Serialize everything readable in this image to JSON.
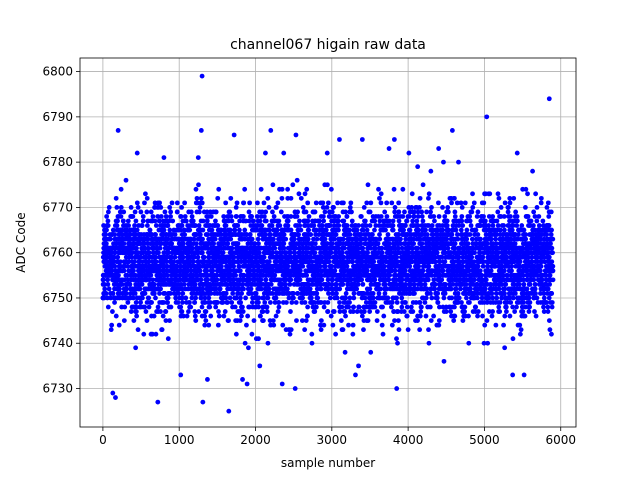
{
  "chart_data": {
    "type": "scatter",
    "title": "channel067 higain raw data",
    "xlabel": "sample number",
    "ylabel": "ADC Code",
    "xlim": [
      -300,
      6200
    ],
    "ylim": [
      6721.5,
      6803
    ],
    "xticks": [
      0,
      1000,
      2000,
      3000,
      4000,
      5000,
      6000
    ],
    "yticks": [
      6730,
      6740,
      6750,
      6760,
      6770,
      6780,
      6790,
      6800
    ],
    "grid": true,
    "marker_color": "#0000ff",
    "n_samples": 5900,
    "baseline_value": 6758,
    "baseline_spread": 6,
    "series": [
      {
        "values_outliers": [
          [
            1300,
            6799
          ],
          [
            5850,
            6794
          ],
          [
            5030,
            6790
          ],
          [
            200,
            6787
          ],
          [
            1290,
            6787
          ],
          [
            2200,
            6787
          ],
          [
            4580,
            6787
          ],
          [
            1720,
            6786
          ],
          [
            2530,
            6786
          ],
          [
            3100,
            6785
          ],
          [
            3400,
            6785
          ],
          [
            3820,
            6785
          ],
          [
            3750,
            6783
          ],
          [
            4400,
            6783
          ],
          [
            450,
            6782
          ],
          [
            2130,
            6782
          ],
          [
            2370,
            6782
          ],
          [
            2940,
            6782
          ],
          [
            4010,
            6782
          ],
          [
            5430,
            6782
          ],
          [
            1250,
            6781
          ],
          [
            800,
            6781
          ],
          [
            4660,
            6780
          ],
          [
            130,
            6729
          ],
          [
            165,
            6728
          ],
          [
            1370,
            6732
          ],
          [
            1830,
            6732
          ],
          [
            2350,
            6731
          ],
          [
            2520,
            6730
          ],
          [
            3850,
            6730
          ],
          [
            1310,
            6727
          ],
          [
            720,
            6727
          ],
          [
            1650,
            6725
          ],
          [
            3310,
            6733
          ],
          [
            3350,
            6735
          ],
          [
            4470,
            6736
          ],
          [
            5370,
            6733
          ],
          [
            5520,
            6733
          ],
          [
            1890,
            6731
          ],
          [
            1020,
            6733
          ]
        ]
      }
    ]
  }
}
